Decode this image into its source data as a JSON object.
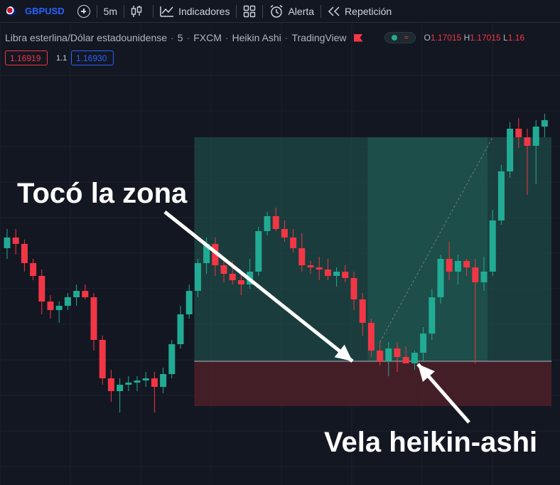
{
  "toolbar": {
    "symbol": "GBPUSD",
    "interval": "5m",
    "indicators_label": "Indicadores",
    "alert_label": "Alerta",
    "replay_label": "Repetición"
  },
  "header": {
    "title": "Libra esterlina/Dólar estadounidense",
    "interval": "5",
    "broker": "FXCM",
    "chart_style": "Heikin Ashi",
    "source": "TradingView",
    "ohlc_open_label": "O",
    "ohlc_open_value": "1.17015",
    "ohlc_high_label": "H",
    "ohlc_high_value": "1.17015",
    "ohlc_low_label": "L",
    "ohlc_low_value": "1.16"
  },
  "quote": {
    "sell": "1.16919",
    "spread": "1.1",
    "buy": "1.16930"
  },
  "annotations": {
    "zone_touch": "Tocó la zona",
    "candle_label": "Vela heikin-ashi"
  },
  "colors": {
    "background": "#131722",
    "bull": "#22ab94",
    "bear": "#f23645",
    "profit_zone": "#1f4a46",
    "loss_zone": "#4a1f28",
    "accent": "#2962ff"
  },
  "chart_data": {
    "type": "candlestick",
    "style": "Heikin Ashi",
    "candles": [
      {
        "o": 0.53,
        "h": 0.62,
        "l": 0.48,
        "c": 0.58
      },
      {
        "o": 0.58,
        "h": 0.62,
        "l": 0.5,
        "c": 0.55
      },
      {
        "o": 0.55,
        "h": 0.57,
        "l": 0.42,
        "c": 0.46
      },
      {
        "o": 0.46,
        "h": 0.48,
        "l": 0.38,
        "c": 0.4
      },
      {
        "o": 0.4,
        "h": 0.43,
        "l": 0.22,
        "c": 0.28
      },
      {
        "o": 0.28,
        "h": 0.31,
        "l": 0.2,
        "c": 0.24
      },
      {
        "o": 0.24,
        "h": 0.28,
        "l": 0.18,
        "c": 0.26
      },
      {
        "o": 0.26,
        "h": 0.32,
        "l": 0.24,
        "c": 0.3
      },
      {
        "o": 0.3,
        "h": 0.36,
        "l": 0.26,
        "c": 0.33
      },
      {
        "o": 0.33,
        "h": 0.36,
        "l": 0.29,
        "c": 0.3
      },
      {
        "o": 0.3,
        "h": 0.32,
        "l": 0.05,
        "c": 0.1
      },
      {
        "o": 0.1,
        "h": 0.12,
        "l": -0.11,
        "c": -0.08
      },
      {
        "o": -0.08,
        "h": -0.04,
        "l": -0.19,
        "c": -0.14
      },
      {
        "o": -0.14,
        "h": -0.08,
        "l": -0.24,
        "c": -0.11
      },
      {
        "o": -0.11,
        "h": -0.07,
        "l": -0.14,
        "c": -0.1
      },
      {
        "o": -0.1,
        "h": -0.07,
        "l": -0.14,
        "c": -0.09
      },
      {
        "o": -0.09,
        "h": -0.05,
        "l": -0.12,
        "c": -0.08
      },
      {
        "o": -0.08,
        "h": -0.05,
        "l": -0.24,
        "c": -0.12
      },
      {
        "o": -0.12,
        "h": -0.03,
        "l": -0.15,
        "c": -0.06
      },
      {
        "o": -0.06,
        "h": 0.1,
        "l": -0.08,
        "c": 0.08
      },
      {
        "o": 0.08,
        "h": 0.26,
        "l": 0.06,
        "c": 0.22
      },
      {
        "o": 0.22,
        "h": 0.36,
        "l": 0.2,
        "c": 0.33
      },
      {
        "o": 0.33,
        "h": 0.48,
        "l": 0.3,
        "c": 0.46
      },
      {
        "o": 0.46,
        "h": 0.58,
        "l": 0.41,
        "c": 0.55
      },
      {
        "o": 0.55,
        "h": 0.58,
        "l": 0.4,
        "c": 0.45
      },
      {
        "o": 0.45,
        "h": 0.47,
        "l": 0.37,
        "c": 0.41
      },
      {
        "o": 0.41,
        "h": 0.47,
        "l": 0.36,
        "c": 0.38
      },
      {
        "o": 0.38,
        "h": 0.41,
        "l": 0.31,
        "c": 0.36
      },
      {
        "o": 0.36,
        "h": 0.48,
        "l": 0.34,
        "c": 0.42
      },
      {
        "o": 0.42,
        "h": 0.63,
        "l": 0.4,
        "c": 0.61
      },
      {
        "o": 0.61,
        "h": 0.7,
        "l": 0.59,
        "c": 0.68
      },
      {
        "o": 0.68,
        "h": 0.72,
        "l": 0.61,
        "c": 0.62
      },
      {
        "o": 0.62,
        "h": 0.66,
        "l": 0.56,
        "c": 0.58
      },
      {
        "o": 0.58,
        "h": 0.62,
        "l": 0.51,
        "c": 0.53
      },
      {
        "o": 0.53,
        "h": 0.6,
        "l": 0.42,
        "c": 0.45
      },
      {
        "o": 0.45,
        "h": 0.47,
        "l": 0.41,
        "c": 0.44
      },
      {
        "o": 0.44,
        "h": 0.49,
        "l": 0.38,
        "c": 0.43
      },
      {
        "o": 0.43,
        "h": 0.48,
        "l": 0.38,
        "c": 0.4
      },
      {
        "o": 0.4,
        "h": 0.44,
        "l": 0.35,
        "c": 0.42
      },
      {
        "o": 0.42,
        "h": 0.45,
        "l": 0.37,
        "c": 0.39
      },
      {
        "o": 0.39,
        "h": 0.42,
        "l": 0.24,
        "c": 0.29
      },
      {
        "o": 0.29,
        "h": 0.32,
        "l": 0.12,
        "c": 0.18
      },
      {
        "o": 0.18,
        "h": 0.2,
        "l": 0.02,
        "c": 0.05
      },
      {
        "o": 0.05,
        "h": 0.09,
        "l": -0.02,
        "c": 0.0
      },
      {
        "o": 0.0,
        "h": 0.09,
        "l": -0.07,
        "c": 0.06
      },
      {
        "o": 0.06,
        "h": 0.09,
        "l": -0.05,
        "c": 0.02
      },
      {
        "o": 0.02,
        "h": 0.07,
        "l": -0.01,
        "c": -0.01
      },
      {
        "o": -0.01,
        "h": 0.05,
        "l": -0.04,
        "c": 0.04
      },
      {
        "o": 0.04,
        "h": 0.16,
        "l": 0.0,
        "c": 0.13
      },
      {
        "o": 0.13,
        "h": 0.34,
        "l": 0.1,
        "c": 0.3
      },
      {
        "o": 0.3,
        "h": 0.5,
        "l": 0.27,
        "c": 0.48
      },
      {
        "o": 0.48,
        "h": 0.56,
        "l": 0.38,
        "c": 0.42
      },
      {
        "o": 0.42,
        "h": 0.5,
        "l": 0.36,
        "c": 0.47
      },
      {
        "o": 0.47,
        "h": 0.48,
        "l": 0.4,
        "c": 0.44
      },
      {
        "o": 0.44,
        "h": 0.48,
        "l": -0.01,
        "c": 0.37
      },
      {
        "o": 0.37,
        "h": 0.49,
        "l": 0.33,
        "c": 0.42
      },
      {
        "o": 0.42,
        "h": 0.71,
        "l": 0.4,
        "c": 0.66
      },
      {
        "o": 0.66,
        "h": 0.92,
        "l": 0.64,
        "c": 0.89
      },
      {
        "o": 0.89,
        "h": 1.12,
        "l": 0.86,
        "c": 1.09
      },
      {
        "o": 1.09,
        "h": 1.14,
        "l": 1.0,
        "c": 1.05
      },
      {
        "o": 1.05,
        "h": 1.09,
        "l": 0.78,
        "c": 1.01
      },
      {
        "o": 1.01,
        "h": 1.13,
        "l": 0.83,
        "c": 1.1
      },
      {
        "o": 1.1,
        "h": 1.16,
        "l": 1.05,
        "c": 1.13
      }
    ],
    "position": {
      "type": "long",
      "entry_candle": 46,
      "entry": 0.0,
      "take_profit": 1.05,
      "stop_loss": -0.21,
      "zone_start_candle": 22,
      "profit_shade_start_candle": 42,
      "profit_shade_end_candle": 55
    },
    "grid": true
  }
}
